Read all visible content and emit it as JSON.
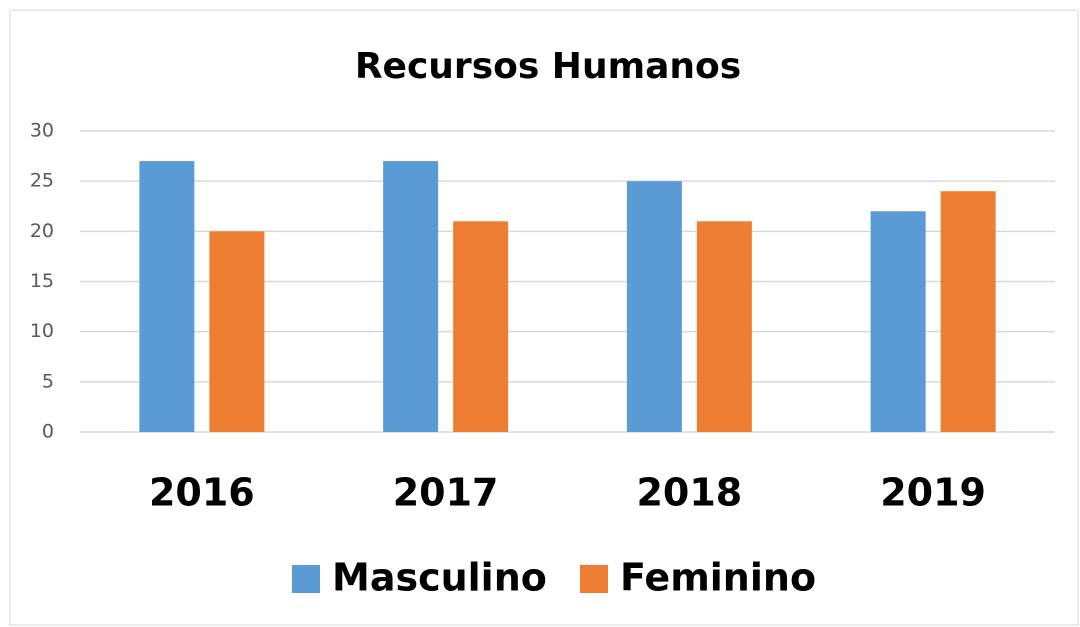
{
  "chart_data": {
    "type": "bar",
    "title": "Recursos Humanos",
    "categories": [
      "2016",
      "2017",
      "2018",
      "2019"
    ],
    "series": [
      {
        "name": "Masculino",
        "color": "#5b9bd5",
        "values": [
          27,
          27,
          25,
          22
        ]
      },
      {
        "name": "Feminino",
        "color": "#ed7d31",
        "values": [
          20,
          21,
          21,
          24
        ]
      }
    ],
    "ylim": [
      0,
      30
    ],
    "yticks": [
      0,
      5,
      10,
      15,
      20,
      25,
      30
    ],
    "grid": true,
    "legend": "bottom"
  }
}
